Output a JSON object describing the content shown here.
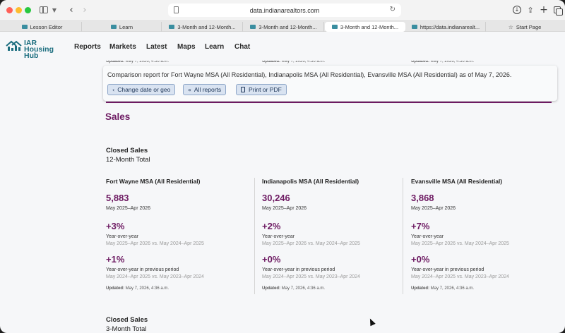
{
  "browser": {
    "address": "data.indianarealtors.com",
    "tabs": [
      {
        "label": "Lesson Editor",
        "icon": "site-favicon"
      },
      {
        "label": "Learn",
        "icon": "site-favicon"
      },
      {
        "label": "3-Month and 12-Month...",
        "icon": "site-favicon"
      },
      {
        "label": "3-Month and 12-Month...",
        "icon": "site-favicon"
      },
      {
        "label": "3-Month and 12-Month...",
        "icon": "site-favicon",
        "active": true
      },
      {
        "label": "https://data.indianarealt...",
        "icon": "site-favicon"
      },
      {
        "label": "Start Page",
        "icon": "star-icon"
      }
    ]
  },
  "site": {
    "logo_line1": "IAR",
    "logo_line2": "Housing Hub",
    "nav": [
      "Reports",
      "Markets",
      "Latest",
      "Maps",
      "Learn",
      "Chat"
    ],
    "brand_color": "#6d1a62",
    "logo_color": "#1c6e7f"
  },
  "report": {
    "updated_label": "Updated:",
    "updated_value": "May 7, 2026, 4:36 a.m.",
    "comparison_text": "Comparison report for Fort Wayne MSA (All Residential), Indianapolis MSA (All Residential), Evansville MSA (All Residential) as of May 7, 2026.",
    "buttons": {
      "change": "Change date or geo",
      "all_reports": "All reports",
      "print": "Print or PDF"
    },
    "section_heading": "Sales",
    "metric_title": "Closed Sales",
    "metric_sub": "12-Month Total",
    "next_metric_title": "Closed Sales",
    "next_metric_sub": "3-Month Total",
    "yoy_label": "Year-over-year",
    "yoy_prev_label": "Year-over-year in previous period",
    "period": "May 2025–Apr 2026",
    "yoy_compare": "May 2025–Apr 2026 vs. May 2024–Apr 2025",
    "yoy_prev_compare": "May 2024–Apr 2025 vs. May 2023–Apr 2024",
    "columns": [
      {
        "geo": "Fort Wayne MSA (All Residential)",
        "value": "5,883",
        "yoy": "+3%",
        "yoy_prev": "+1%"
      },
      {
        "geo": "Indianapolis MSA (All Residential)",
        "value": "30,246",
        "yoy": "+2%",
        "yoy_prev": "+0%"
      },
      {
        "geo": "Evansville MSA (All Residential)",
        "value": "3,868",
        "yoy": "+7%",
        "yoy_prev": "+0%"
      }
    ]
  }
}
